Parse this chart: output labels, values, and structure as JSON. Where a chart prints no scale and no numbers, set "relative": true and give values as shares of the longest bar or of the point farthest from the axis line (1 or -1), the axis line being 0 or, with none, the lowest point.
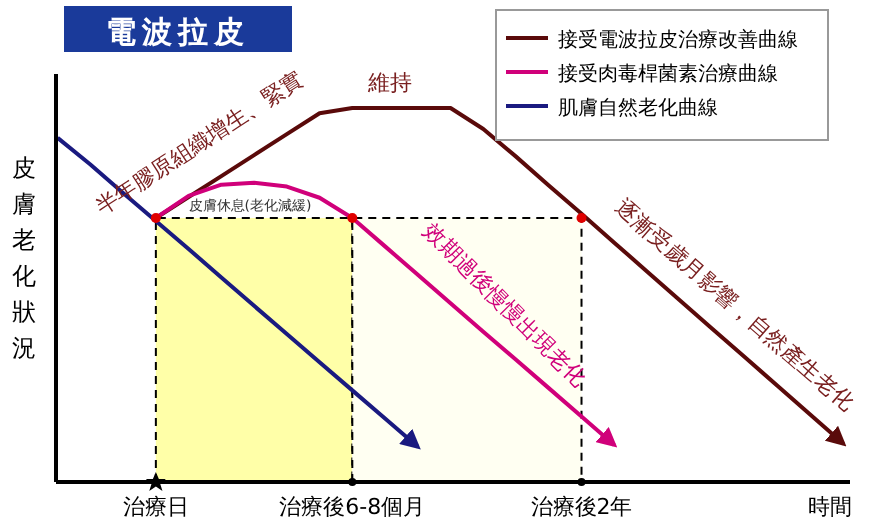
{
  "chart_data": {
    "type": "line",
    "title": "電波拉皮",
    "relative": true,
    "xlabel": "時間",
    "ylabel": "皮膚老化狀況",
    "categories": [
      null,
      null,
      null,
      "治療日",
      null,
      null,
      null,
      null,
      null,
      "治療後6-8個月",
      null,
      null,
      null,
      null,
      null,
      null,
      "治療後2年",
      null,
      null,
      null,
      null,
      null,
      null,
      null,
      null
    ],
    "legend": "top right",
    "series": [
      {
        "type": "area",
        "color": "#ffffa8",
        "values": [
          null,
          null,
          null,
          0.706,
          0.706,
          0.706,
          0.706,
          0.706,
          0.706,
          0.706,
          null,
          null,
          null,
          null,
          null,
          null,
          null,
          null,
          null,
          null,
          null,
          null,
          null,
          null,
          null
        ]
      },
      {
        "type": "area",
        "color": "#fffff2",
        "values": [
          null,
          null,
          null,
          null,
          null,
          null,
          null,
          null,
          null,
          0.706,
          0.706,
          0.706,
          0.706,
          0.706,
          0.706,
          0.706,
          0.706,
          null,
          null,
          null,
          null,
          null,
          null,
          null,
          null
        ]
      },
      {
        "name": "接受電波拉皮治療改善曲線",
        "color": "#5a0a0a",
        "values": [
          null,
          null,
          null,
          0.706,
          0.762,
          0.818,
          0.874,
          0.93,
          0.986,
          1,
          1,
          1,
          1,
          0.944,
          0.87,
          0.793,
          0.717,
          0.64,
          0.563,
          0.486,
          0.409,
          0.333,
          0.256,
          0.179,
          0.102
        ]
      },
      {
        "name": "接受肉毒桿菌素治療曲線",
        "color": "#d0007a",
        "values": [
          null,
          null,
          null,
          0.706,
          0.765,
          0.795,
          0.8,
          0.79,
          0.76,
          0.706,
          0.63,
          0.554,
          0.478,
          0.402,
          0.327,
          0.251,
          0.175,
          0.099,
          null,
          null,
          null,
          null,
          null,
          null,
          null
        ]
      },
      {
        "name": "肌膚自然老化曲線",
        "color": "#1a1a80",
        "values": [
          0.92,
          0.849,
          0.773,
          0.698,
          0.623,
          0.547,
          0.471,
          0.396,
          0.32,
          0.245,
          0.17,
          0.094,
          null,
          null,
          null,
          null,
          null,
          null,
          null,
          null,
          null,
          null,
          null,
          null,
          null
        ]
      },
      {
        "type": "scatter",
        "color": "#e00000",
        "values": [
          null,
          null,
          null,
          0.706,
          null,
          null,
          null,
          null,
          null,
          0.706,
          null,
          null,
          null,
          null,
          null,
          null,
          0.706,
          null,
          null,
          null,
          null,
          null,
          null,
          null,
          null
        ]
      }
    ],
    "annotations": [
      "半年膠原組織增生、緊實",
      "維持",
      "皮膚休息(老化減緩)",
      "效期過後慢慢出現老化",
      "逐漸受歲月影響，自然產生老化"
    ]
  }
}
